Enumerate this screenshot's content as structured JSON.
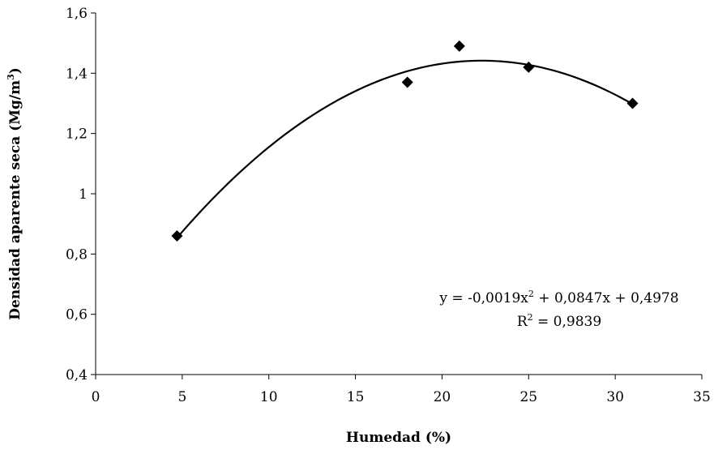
{
  "chart_data": {
    "type": "scatter",
    "title": "",
    "xlabel": "Humedad (%)",
    "ylabel": {
      "text": "Densidad aparente seca (Mg/m",
      "superscript": "3",
      "suffix": ")"
    },
    "xlim": [
      0,
      35
    ],
    "ylim": [
      0.4,
      1.6
    ],
    "x_ticks": [
      {
        "value": 0,
        "label": "0"
      },
      {
        "value": 5,
        "label": "5"
      },
      {
        "value": 10,
        "label": "10"
      },
      {
        "value": 15,
        "label": "15"
      },
      {
        "value": 20,
        "label": "20"
      },
      {
        "value": 25,
        "label": "25"
      },
      {
        "value": 30,
        "label": "30"
      },
      {
        "value": 35,
        "label": "35"
      }
    ],
    "y_ticks": [
      {
        "value": 0.4,
        "label": "0,4"
      },
      {
        "value": 0.6,
        "label": "0,6"
      },
      {
        "value": 0.8,
        "label": "0,8"
      },
      {
        "value": 1.0,
        "label": "1"
      },
      {
        "value": 1.2,
        "label": "1,2"
      },
      {
        "value": 1.4,
        "label": "1,4"
      },
      {
        "value": 1.6,
        "label": "1,6"
      }
    ],
    "grid": false,
    "legend": "none",
    "marker": "diamond",
    "marker_color": "#000000",
    "line_color": "#000000",
    "series": [
      {
        "points": [
          {
            "x": 4.7,
            "y": 0.86
          },
          {
            "x": 18,
            "y": 1.37
          },
          {
            "x": 21,
            "y": 1.49
          },
          {
            "x": 25,
            "y": 1.42
          },
          {
            "x": 31,
            "y": 1.3
          }
        ]
      }
    ],
    "trendline": {
      "type": "polynomial",
      "coefficients": {
        "a": -0.0019,
        "b": 0.0847,
        "c": 0.4978
      },
      "x_range": [
        4.7,
        31
      ]
    },
    "annotation": {
      "equation_parts": [
        "y = -0,0019x",
        "2",
        " + 0,0847x + 0,4978"
      ],
      "r2_parts": [
        "R",
        "2",
        " = 0,9839"
      ]
    }
  }
}
